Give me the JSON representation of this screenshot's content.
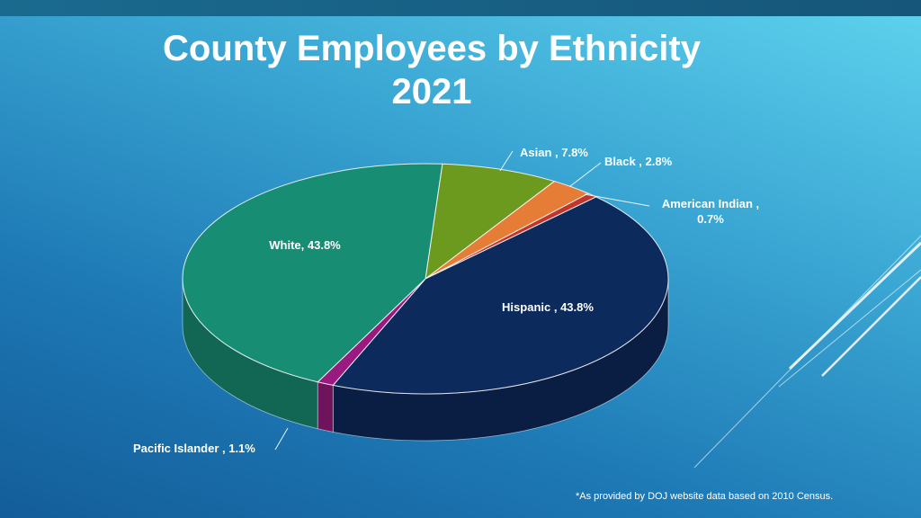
{
  "slide": {
    "title_line1": "County Employees by Ethnicity",
    "title_line2": "2021",
    "footnote": "*As provided by DOJ website data based on 2010 Census."
  },
  "chart_data": {
    "type": "pie",
    "title": "County Employees by Ethnicity 2021",
    "style": "3d",
    "data_label_format": "category-and-percent",
    "slices": [
      {
        "category": "Asian",
        "value": 7.8,
        "color": "#6c9a1f",
        "label_line1": "Asian , 7.8%",
        "label_line2": ""
      },
      {
        "category": "Black",
        "value": 2.8,
        "color": "#e57d36",
        "label_line1": "Black , 2.8%",
        "label_line2": ""
      },
      {
        "category": "American Indian",
        "value": 0.7,
        "color": "#c2352a",
        "label_line1": "American Indian ,",
        "label_line2": "0.7%"
      },
      {
        "category": "Hispanic",
        "value": 43.8,
        "color": "#0d2a5c",
        "label_line1": "Hispanic , 43.8%",
        "label_line2": ""
      },
      {
        "category": "Pacific Islander",
        "value": 1.1,
        "color": "#9a1a80",
        "label_line1": "Pacific Islander , 1.1%",
        "label_line2": ""
      },
      {
        "category": "White",
        "value": 43.8,
        "color": "#178e74",
        "label_line1": "White, 43.8%",
        "label_line2": ""
      }
    ]
  }
}
